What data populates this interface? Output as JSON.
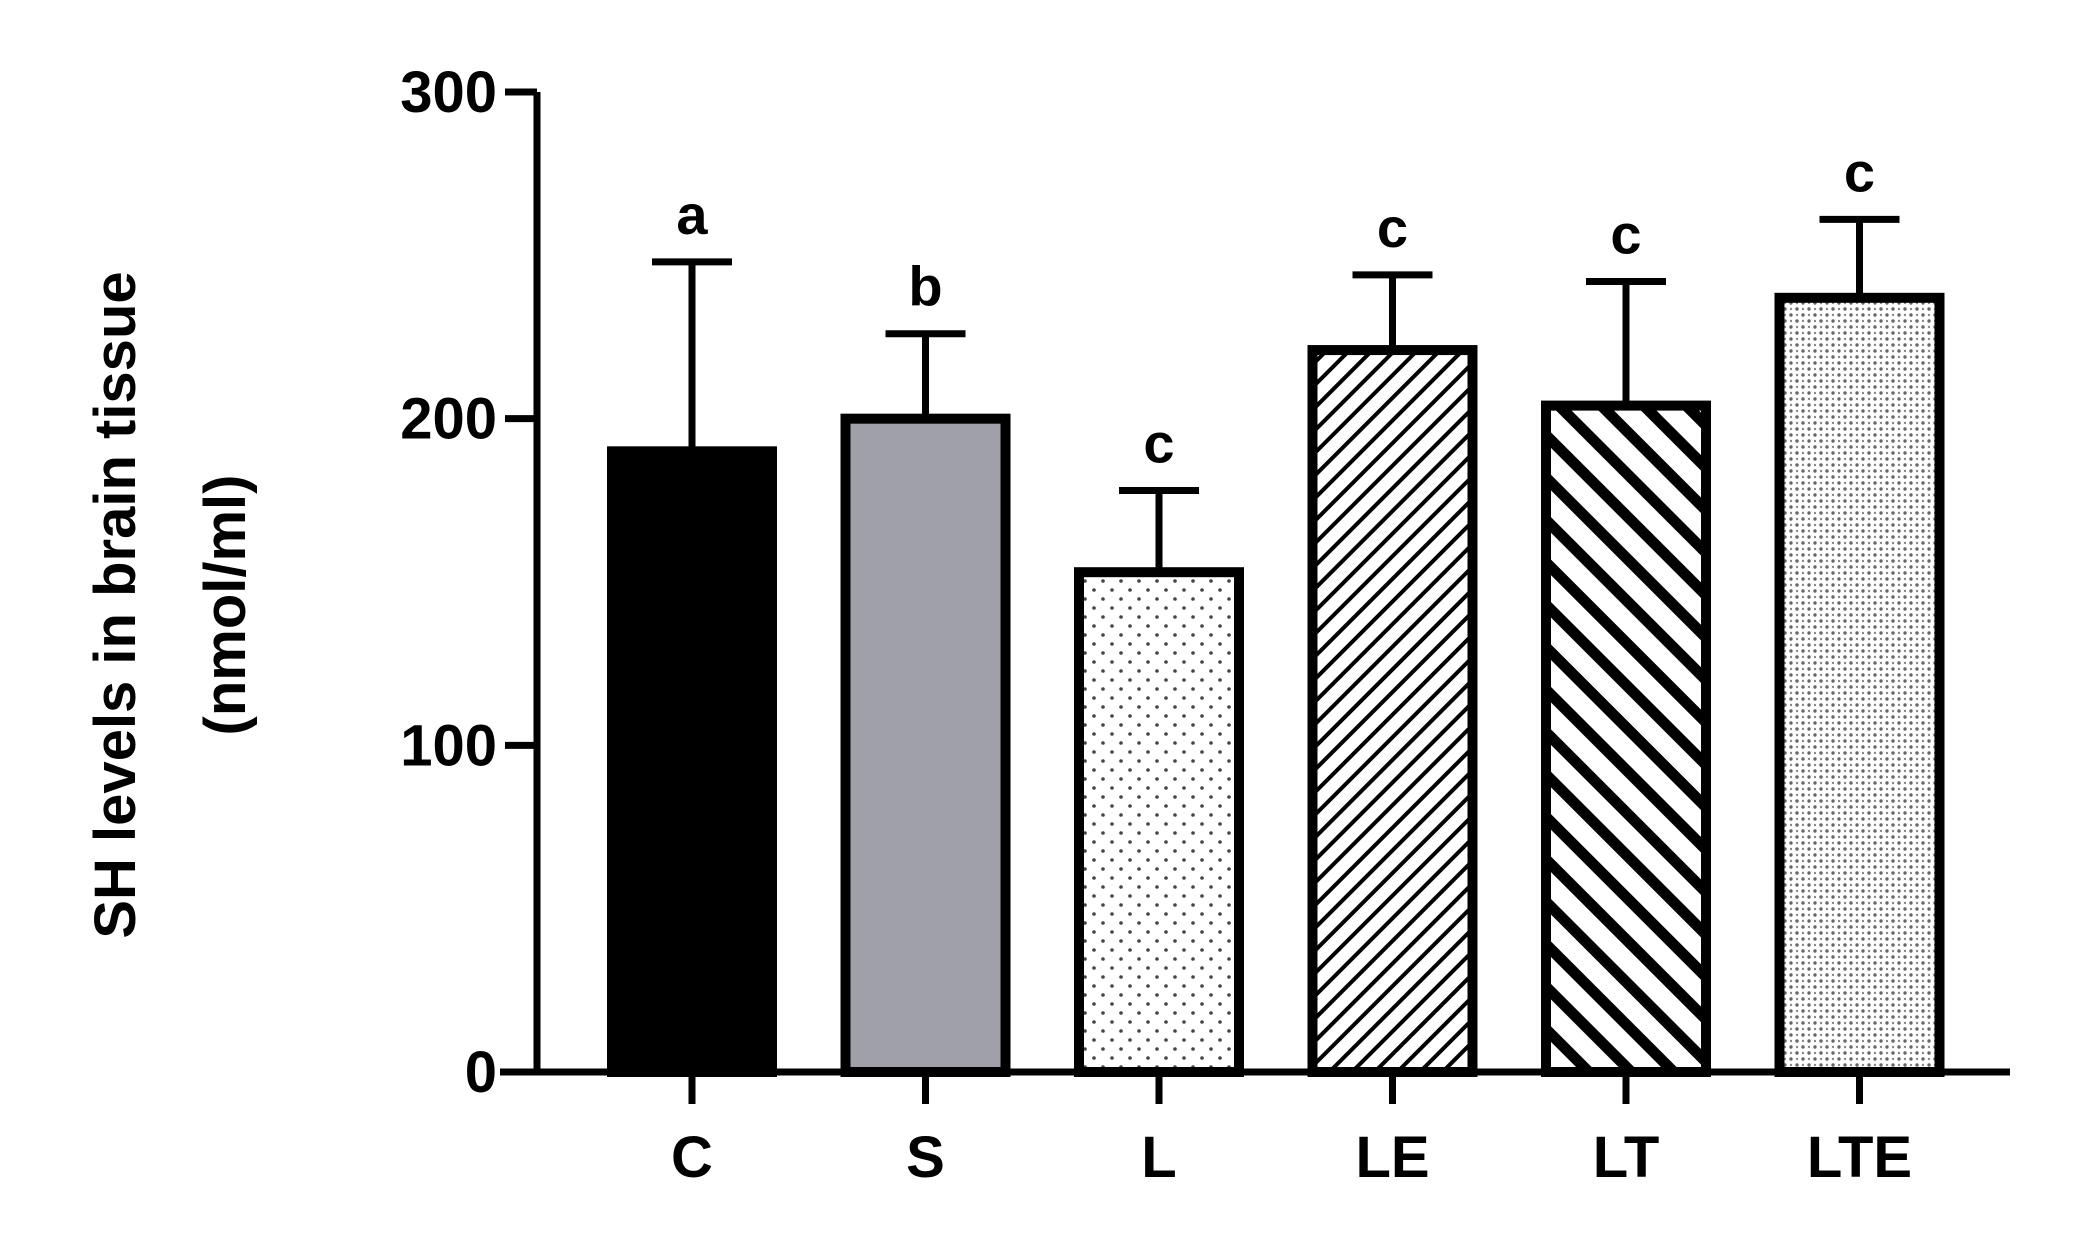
{
  "chart_data": {
    "type": "bar",
    "title": "",
    "xlabel": "",
    "ylabel_line1": "SH levels in brain tissue",
    "ylabel_line2": "(nmol/ml)",
    "ylim": [
      0,
      300
    ],
    "yticks": [
      0,
      100,
      200,
      300
    ],
    "ytick_labels": [
      "0",
      "100",
      "200",
      "300"
    ],
    "grid": false,
    "legend": "none",
    "categories": [
      "C",
      "S",
      "L",
      "LE",
      "LT",
      "LTE"
    ],
    "values": [
      190,
      200,
      153,
      221,
      204,
      237
    ],
    "errors": [
      58,
      26,
      25,
      23,
      38,
      24
    ],
    "significance_letters": [
      "a",
      "b",
      "c",
      "c",
      "c",
      "c"
    ],
    "fills": [
      "solid-black",
      "solid-gray",
      "dots",
      "diagonal-fine",
      "diagonal-bold-back",
      "dense-dots"
    ],
    "colors": {
      "outline": "#000000",
      "c_fill": "#000000",
      "s_fill": "#a0a0a8",
      "pattern_bg": "#ffffff"
    }
  }
}
